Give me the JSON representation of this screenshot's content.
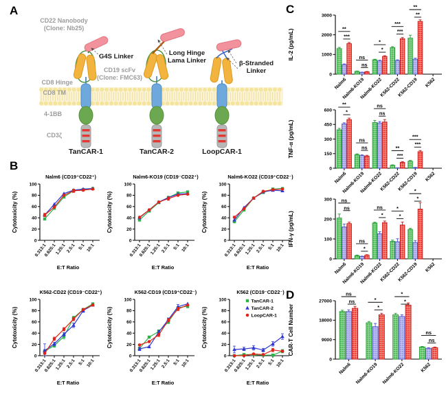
{
  "panel_labels": {
    "a": "A",
    "b": "B",
    "c": "C",
    "d": "D"
  },
  "panel_a": {
    "cd22_nanobody": "CD22 Nanobody\n(Clone: Nb25)",
    "g4s_linker": "G4S Linker",
    "cd19_scfv": "CD19 scFv\n(Clone: FMC63)",
    "cd8_hinge": "CD8 Hinge",
    "cd8_tm": "CD8 TM",
    "co_stim": "4-1BB",
    "cd3zeta": "CD3ζ",
    "long_hinge": "Long Hinge\nLama Linker",
    "beta_stranded": "β-Stranded\nLinker",
    "constructs": [
      "TanCAR-1",
      "TanCAR-2",
      "LoopCAR-1"
    ],
    "colors": {
      "nanobody": "#F2929C",
      "nanobody_edge": "#E2747F",
      "scfv": "#F3B33F",
      "scfv_edge": "#D99A1E",
      "tm": "#6FA8DC",
      "tm_edge": "#4E8CC9",
      "costim": "#6BA84F",
      "costim_edge": "#55923C",
      "cd3": "#B7B7B7",
      "cd3_edge": "#9A9A9A",
      "stripe": "#E53935",
      "loop": "#4A8F3F",
      "g4s": "#2F6E2F",
      "long_linker": "#B05A10",
      "beta_linker": "#3B68C4",
      "membrane_head": "#F4E49C",
      "membrane_band": "#FBF4D9",
      "membrane_tail": "#EFE0A0"
    }
  },
  "series_style": {
    "line": [
      {
        "name": "TanCAR-1",
        "color": "#2DB34A",
        "marker": "square"
      },
      {
        "name": "TanCAR-2",
        "color": "#3038D0",
        "marker": "triangle"
      },
      {
        "name": "LoopCAR-1",
        "color": "#E2231A",
        "marker": "circle"
      }
    ],
    "bar": [
      {
        "name": "TanCAR-1",
        "fill": "#53BC5B",
        "edge": "#219A31"
      },
      {
        "name": "TanCAR-2",
        "fill": "#9C9FE8",
        "edge": "#4A50CE"
      },
      {
        "name": "LoopCAR-1",
        "fill": "#F04338",
        "edge": "#C01818"
      }
    ]
  },
  "chart_data": [
    {
      "id": "nalm6",
      "type": "line",
      "title": "Nalm6 (CD19⁺CD22⁺)",
      "xlabel": "E:T Ratio",
      "ylabel": "Cytotoxicity (%)",
      "ylim": [
        0,
        100
      ],
      "yticks": [
        0,
        20,
        40,
        60,
        80,
        100
      ],
      "x": [
        "0.313:1",
        "0.625:1",
        "1.25:1",
        "2.5:1",
        "5:1",
        "10:1"
      ],
      "series": [
        {
          "name": "TanCAR-1",
          "values": [
            38,
            57,
            77,
            88,
            90,
            92
          ],
          "err": [
            2,
            2,
            2,
            2,
            2,
            2
          ]
        },
        {
          "name": "TanCAR-2",
          "values": [
            45,
            64,
            83,
            89,
            91,
            92
          ],
          "err": [
            2,
            2,
            2,
            2,
            2,
            2
          ]
        },
        {
          "name": "LoopCAR-1",
          "values": [
            45,
            59,
            80,
            88,
            89,
            91
          ],
          "err": [
            3,
            2,
            2,
            3,
            2,
            2
          ]
        }
      ]
    },
    {
      "id": "nalm6-ko19",
      "type": "line",
      "title": "Nalm6-KO19 (CD19⁻CD22⁺)",
      "xlabel": "E:T Ratio",
      "ylabel": "Cytotoxicity (%)",
      "ylim": [
        0,
        100
      ],
      "yticks": [
        0,
        20,
        40,
        60,
        80,
        100
      ],
      "x": [
        "0.313:1",
        "0.625:1",
        "1.25:1",
        "2.5:1",
        "5:1",
        "10:1"
      ],
      "series": [
        {
          "name": "TanCAR-1",
          "values": [
            36,
            52,
            67,
            76,
            84,
            86
          ],
          "err": [
            2,
            2,
            2,
            2,
            2,
            2
          ]
        },
        {
          "name": "TanCAR-2",
          "values": [
            40,
            54,
            68,
            76,
            82,
            83
          ],
          "err": [
            2,
            2,
            2,
            2,
            2,
            2
          ]
        },
        {
          "name": "LoopCAR-1",
          "values": [
            41,
            54,
            68,
            74,
            80,
            82
          ],
          "err": [
            2,
            2,
            2,
            3,
            2,
            2
          ]
        }
      ]
    },
    {
      "id": "nalm6-ko22",
      "type": "line",
      "title": "Nalm6-KO22 (CD19⁺CD22⁻)",
      "xlabel": "E:T Ratio",
      "ylabel": "Cytotoxicity (%)",
      "ylim": [
        0,
        100
      ],
      "yticks": [
        0,
        20,
        40,
        60,
        80,
        100
      ],
      "x": [
        "0.313:1",
        "0.625:1",
        "1.25:1",
        "2.5:1",
        "5:1",
        "10:1"
      ],
      "series": [
        {
          "name": "TanCAR-1",
          "values": [
            33,
            54,
            75,
            85,
            91,
            92
          ],
          "err": [
            2,
            2,
            2,
            2,
            2,
            2
          ]
        },
        {
          "name": "TanCAR-2",
          "values": [
            36,
            58,
            75,
            86,
            89,
            88
          ],
          "err": [
            2,
            2,
            2,
            2,
            2,
            2
          ]
        },
        {
          "name": "LoopCAR-1",
          "values": [
            41,
            56,
            75,
            87,
            90,
            91
          ],
          "err": [
            2,
            2,
            2,
            2,
            2,
            2
          ]
        }
      ]
    },
    {
      "id": "k562-cd22",
      "type": "line",
      "title": "K562-CD22 (CD19⁻CD22⁺)",
      "xlabel": "E:T Ratio",
      "ylabel": "Cytotoxicity (%)",
      "ylim": [
        0,
        100
      ],
      "yticks": [
        0,
        20,
        40,
        60,
        80,
        100
      ],
      "x": [
        "0.313:1",
        "0.625:1",
        "1.25:1",
        "2.5:1",
        "5:1",
        "10:1"
      ],
      "series": [
        {
          "name": "TanCAR-1",
          "values": [
            8,
            18,
            34,
            67,
            82,
            92
          ],
          "err": [
            3,
            3,
            4,
            3,
            2,
            2
          ]
        },
        {
          "name": "TanCAR-2",
          "values": [
            9,
            21,
            38,
            54,
            80,
            90
          ],
          "err": [
            12,
            3,
            3,
            4,
            3,
            2
          ]
        },
        {
          "name": "LoopCAR-1",
          "values": [
            4,
            30,
            47,
            65,
            82,
            90
          ],
          "err": [
            2,
            3,
            3,
            3,
            2,
            2
          ]
        }
      ]
    },
    {
      "id": "k562-cd19",
      "type": "line",
      "title": "K562-CD19 (CD19⁺CD22⁻)",
      "xlabel": "E:T Ratio",
      "ylabel": "Cytotoxicity (%)",
      "ylim": [
        0,
        100
      ],
      "yticks": [
        0,
        20,
        40,
        60,
        80,
        100
      ],
      "x": [
        "0.313:1",
        "0.625:1",
        "1.25:1",
        "2.5:1",
        "5:1",
        "10:1"
      ],
      "series": [
        {
          "name": "TanCAR-1",
          "values": [
            13,
            33,
            43,
            60,
            85,
            88
          ],
          "err": [
            2,
            2,
            3,
            3,
            2,
            3
          ]
        },
        {
          "name": "TanCAR-2",
          "values": [
            12,
            16,
            42,
            64,
            87,
            92
          ],
          "err": [
            3,
            2,
            3,
            3,
            4,
            2
          ]
        },
        {
          "name": "LoopCAR-1",
          "values": [
            19,
            25,
            37,
            63,
            83,
            90
          ],
          "err": [
            2,
            2,
            3,
            3,
            3,
            2
          ]
        }
      ]
    },
    {
      "id": "k562",
      "type": "line",
      "title": "K562 (CD19⁻CD22⁻)",
      "legend": true,
      "xlabel": "E:T Ratio",
      "ylabel": "Cytotoxicity (%)",
      "ylim": [
        0,
        100
      ],
      "yticks": [
        0,
        20,
        40,
        60,
        80,
        100
      ],
      "x": [
        "0.313:1",
        "0.625:1",
        "1.25:1",
        "2.5:1",
        "5:1",
        "10:1"
      ],
      "series": [
        {
          "name": "TanCAR-1",
          "values": [
            0,
            2,
            2,
            1,
            1,
            8
          ],
          "err": [
            2,
            2,
            2,
            2,
            2,
            3
          ]
        },
        {
          "name": "TanCAR-2",
          "values": [
            11,
            12,
            14,
            10,
            21,
            34
          ],
          "err": [
            6,
            3,
            4,
            3,
            4,
            5
          ]
        },
        {
          "name": "LoopCAR-1",
          "values": [
            0,
            0,
            3,
            2,
            10,
            8
          ],
          "err": [
            2,
            2,
            2,
            2,
            3,
            2
          ]
        }
      ]
    },
    {
      "id": "il2",
      "type": "bar",
      "ylabel": "IL-2 (pg/mL)",
      "ylim": [
        0,
        3000
      ],
      "yticks": [
        0,
        1000,
        2000,
        3000
      ],
      "categories": [
        "Nalm6",
        "Nalm6-KO19",
        "Nalm6-KO22",
        "K562-CD22",
        "K562-CD19",
        "K562"
      ],
      "series": [
        {
          "name": "TanCAR-1",
          "values": [
            1300,
            140,
            730,
            1350,
            1830,
            0
          ],
          "err": [
            60,
            20,
            30,
            50,
            150,
            0
          ]
        },
        {
          "name": "TanCAR-2",
          "values": [
            480,
            90,
            670,
            690,
            760,
            0
          ],
          "err": [
            40,
            15,
            40,
            40,
            50,
            0
          ]
        },
        {
          "name": "LoopCAR-1",
          "values": [
            1550,
            120,
            900,
            1800,
            2680,
            0
          ],
          "err": [
            60,
            15,
            40,
            60,
            80,
            0
          ]
        }
      ],
      "sig": [
        [
          "**",
          "***"
        ],
        [
          "ns",
          "ns"
        ],
        [
          "*",
          "*"
        ],
        [
          "***",
          "***"
        ],
        [
          "**",
          "**"
        ],
        null
      ]
    },
    {
      "id": "tnfa",
      "type": "bar",
      "ylabel": "TNF-α (pg/mL)",
      "ylim": [
        0,
        600
      ],
      "yticks": [
        0,
        150,
        300,
        450,
        600
      ],
      "categories": [
        "Nalm6",
        "Nalm6-KO19",
        "Nalm6-KO22",
        "K562-CD22",
        "K562-CD19",
        "K562"
      ],
      "series": [
        {
          "name": "TanCAR-1",
          "values": [
            395,
            140,
            470,
            30,
            72,
            0
          ],
          "err": [
            15,
            8,
            20,
            5,
            8,
            0
          ]
        },
        {
          "name": "TanCAR-2",
          "values": [
            455,
            130,
            465,
            3,
            6,
            0
          ],
          "err": [
            12,
            8,
            15,
            2,
            3,
            0
          ]
        },
        {
          "name": "LoopCAR-1",
          "values": [
            500,
            125,
            475,
            60,
            170,
            0
          ],
          "err": [
            15,
            8,
            25,
            8,
            12,
            0
          ]
        }
      ],
      "sig": [
        [
          "**",
          "*"
        ],
        [
          "ns",
          "ns"
        ],
        [
          "ns",
          "ns"
        ],
        [
          "**",
          "***"
        ],
        [
          "***",
          "***"
        ],
        null
      ]
    },
    {
      "id": "ifng",
      "type": "bar",
      "ylabel": "IFN-γ (pg/mL)",
      "ylim": [
        0,
        300
      ],
      "yticks": [
        0,
        100,
        200,
        300
      ],
      "categories": [
        "Nalm6",
        "Nalm6-KO19",
        "Nalm6-KO22",
        "K562-CD22",
        "K562-CD19",
        "K562"
      ],
      "series": [
        {
          "name": "TanCAR-1",
          "values": [
            205,
            16,
            180,
            88,
            148,
            0
          ],
          "err": [
            20,
            3,
            4,
            6,
            5,
            0
          ]
        },
        {
          "name": "TanCAR-2",
          "values": [
            160,
            12,
            126,
            86,
            82,
            0
          ],
          "err": [
            15,
            2,
            10,
            15,
            10,
            0
          ]
        },
        {
          "name": "LoopCAR-1",
          "values": [
            177,
            18,
            182,
            170,
            250,
            0
          ],
          "err": [
            8,
            3,
            8,
            15,
            32,
            0
          ]
        }
      ],
      "sig": [
        [
          "ns",
          "ns"
        ],
        [
          "ns",
          "*"
        ],
        [
          "ns",
          "*"
        ],
        [
          "*",
          "*"
        ],
        [
          "*",
          "*"
        ],
        null
      ]
    },
    {
      "id": "cart-number",
      "type": "bar",
      "ylabel": "CAR-T Cell Number",
      "ylim": [
        0,
        27000
      ],
      "yticks": [
        0,
        9000,
        18000,
        27000
      ],
      "categories": [
        "Nalm6",
        "Nalm6-KO19",
        "Nalm6-KO22",
        "K562"
      ],
      "series": [
        {
          "name": "TanCAR-1",
          "values": [
            22000,
            16800,
            20500,
            5600
          ],
          "err": [
            600,
            600,
            700,
            300
          ]
        },
        {
          "name": "TanCAR-2",
          "values": [
            22000,
            15000,
            19700,
            5000
          ],
          "err": [
            800,
            1500,
            800,
            300
          ]
        },
        {
          "name": "LoopCAR-1",
          "values": [
            23500,
            20500,
            25000,
            5300
          ],
          "err": [
            900,
            700,
            1000,
            300
          ]
        }
      ],
      "sig": [
        [
          "ns",
          "ns"
        ],
        [
          "*",
          "*"
        ],
        [
          "*",
          "*"
        ],
        [
          "ns",
          "ns"
        ]
      ]
    }
  ]
}
